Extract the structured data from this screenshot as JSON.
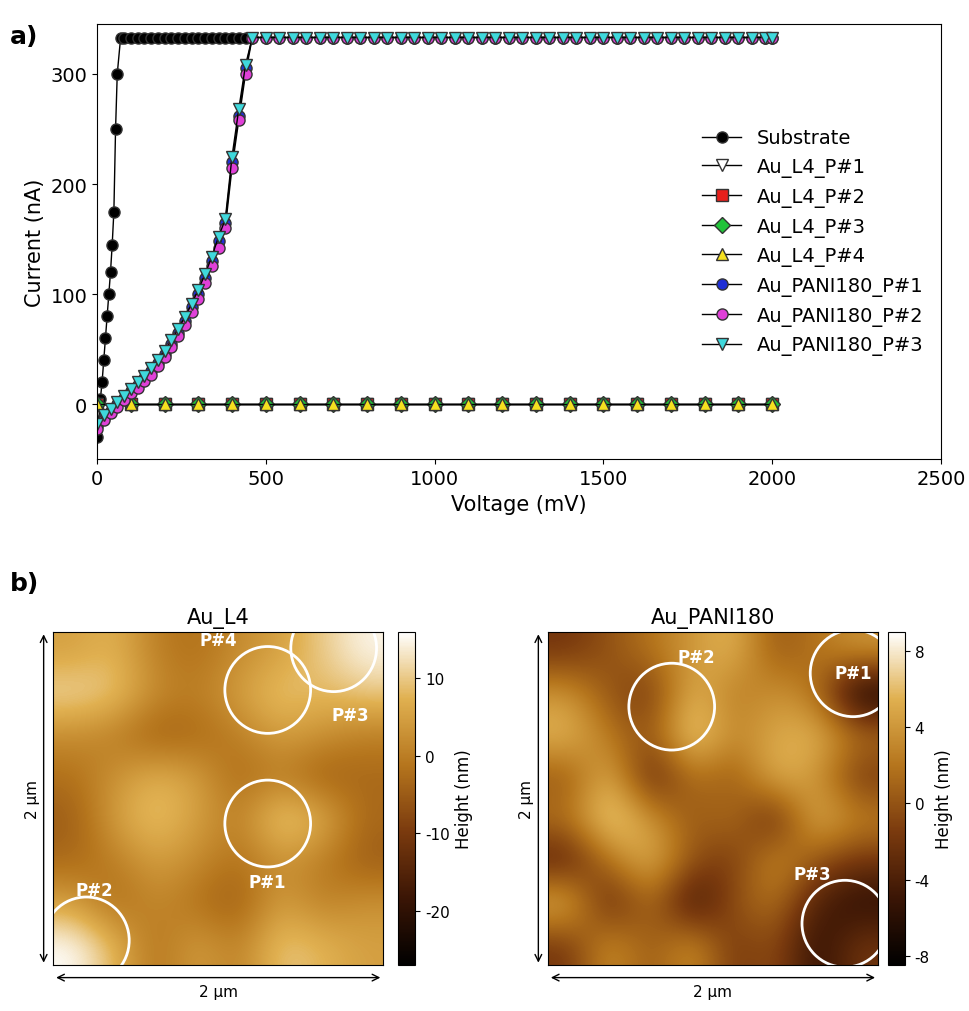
{
  "chart_data": [
    {
      "type": "line",
      "panel_label": "a)",
      "xlabel": "Voltage (mV)",
      "ylabel": "Current (nA)",
      "xlim": [
        0,
        2500
      ],
      "xticks": [
        0,
        500,
        1000,
        1500,
        2000,
        2500
      ],
      "ylim": [
        -50,
        345
      ],
      "yticks": [
        0,
        100,
        200,
        300
      ],
      "legend": "center right",
      "grid": false,
      "series": [
        {
          "name": "Substrate",
          "color": "#000000",
          "marker": "circle",
          "line_style": "solid",
          "x": [
            0,
            5,
            10,
            15,
            20,
            25,
            30,
            35,
            40,
            45,
            50,
            55,
            60,
            70,
            80,
            100,
            120,
            140,
            160,
            180,
            200,
            220,
            240,
            260,
            280,
            300,
            320,
            340,
            360,
            380,
            400,
            420,
            440
          ],
          "values": [
            -30,
            -15,
            5,
            20,
            40,
            60,
            80,
            100,
            120,
            145,
            175,
            250,
            300,
            333,
            333,
            333,
            333,
            333,
            333,
            333,
            333,
            333,
            333,
            333,
            333,
            333,
            333,
            333,
            333,
            333,
            333,
            333,
            333
          ]
        },
        {
          "name": "Au_L4_P#1",
          "color": "#ffffff",
          "marker": "triangle_down",
          "line_style": "solid",
          "x": [
            0,
            100,
            200,
            300,
            400,
            500,
            600,
            700,
            800,
            900,
            1000,
            1100,
            1200,
            1300,
            1400,
            1500,
            1600,
            1700,
            1800,
            1900,
            2000
          ],
          "values": [
            0,
            0,
            0,
            0,
            0,
            0,
            0,
            0,
            0,
            0,
            0,
            0,
            0,
            0,
            0,
            0,
            0,
            0,
            0,
            0,
            0
          ]
        },
        {
          "name": "Au_L4_P#2",
          "color": "#e8201c",
          "marker": "square",
          "line_style": "solid",
          "x": [
            0,
            100,
            200,
            300,
            400,
            500,
            600,
            700,
            800,
            900,
            1000,
            1100,
            1200,
            1300,
            1400,
            1500,
            1600,
            1700,
            1800,
            1900,
            2000
          ],
          "values": [
            0,
            0,
            0,
            0,
            0,
            0,
            0,
            0,
            0,
            0,
            0,
            0,
            0,
            0,
            0,
            0,
            0,
            0,
            0,
            0,
            0
          ]
        },
        {
          "name": "Au_L4_P#3",
          "color": "#22c33a",
          "marker": "diamond",
          "line_style": "solid",
          "x": [
            0,
            100,
            200,
            300,
            400,
            500,
            600,
            700,
            800,
            900,
            1000,
            1100,
            1200,
            1300,
            1400,
            1500,
            1600,
            1700,
            1800,
            1900,
            2000
          ],
          "values": [
            0,
            0,
            0,
            0,
            0,
            0,
            0,
            0,
            0,
            0,
            0,
            0,
            0,
            0,
            0,
            0,
            0,
            0,
            0,
            0,
            0
          ]
        },
        {
          "name": "Au_L4_P#4",
          "color": "#f5e020",
          "marker": "triangle_up",
          "line_style": "solid",
          "x": [
            0,
            100,
            200,
            300,
            400,
            500,
            600,
            700,
            800,
            900,
            1000,
            1100,
            1200,
            1300,
            1400,
            1500,
            1600,
            1700,
            1800,
            1900,
            2000
          ],
          "values": [
            0,
            0,
            0,
            0,
            0,
            0,
            0,
            0,
            0,
            0,
            0,
            0,
            0,
            0,
            0,
            0,
            0,
            0,
            0,
            0,
            0
          ]
        },
        {
          "name": "Au_PANI180_P#1",
          "color": "#1f2fd6",
          "marker": "circle",
          "line_style": "solid",
          "x": [
            0,
            20,
            40,
            60,
            80,
            100,
            120,
            140,
            160,
            180,
            200,
            220,
            240,
            260,
            280,
            300,
            320,
            340,
            360,
            380,
            400,
            420,
            440,
            460,
            500,
            540,
            580,
            620,
            660,
            700,
            740,
            780,
            820,
            860,
            900,
            940,
            980,
            1020,
            1060,
            1100,
            1140,
            1180,
            1220,
            1260,
            1300,
            1340,
            1380,
            1420,
            1460,
            1500,
            1540,
            1580,
            1620,
            1660,
            1700,
            1740,
            1780,
            1820,
            1860,
            1900,
            1940,
            1980,
            2000
          ],
          "values": [
            -20,
            -12,
            -6,
            0,
            6,
            12,
            18,
            24,
            30,
            38,
            46,
            55,
            65,
            76,
            88,
            100,
            115,
            130,
            148,
            165,
            220,
            262,
            305,
            333,
            333,
            333,
            333,
            333,
            333,
            333,
            333,
            333,
            333,
            333,
            333,
            333,
            333,
            333,
            333,
            333,
            333,
            333,
            333,
            333,
            333,
            333,
            333,
            333,
            333,
            333,
            333,
            333,
            333,
            333,
            333,
            333,
            333,
            333,
            333,
            333,
            333,
            333,
            333
          ]
        },
        {
          "name": "Au_PANI180_P#2",
          "color": "#e040d8",
          "marker": "circle",
          "line_style": "solid",
          "x": [
            0,
            20,
            40,
            60,
            80,
            100,
            120,
            140,
            160,
            180,
            200,
            220,
            240,
            260,
            280,
            300,
            320,
            340,
            360,
            380,
            400,
            420,
            440,
            460,
            500,
            540,
            580,
            620,
            660,
            700,
            740,
            780,
            820,
            860,
            900,
            940,
            980,
            1020,
            1060,
            1100,
            1140,
            1180,
            1220,
            1260,
            1300,
            1340,
            1380,
            1420,
            1460,
            1500,
            1540,
            1580,
            1620,
            1660,
            1700,
            1740,
            1780,
            1820,
            1860,
            1900,
            1940,
            1980,
            2000
          ],
          "values": [
            -22,
            -14,
            -8,
            -2,
            4,
            10,
            15,
            21,
            27,
            35,
            43,
            52,
            62,
            72,
            84,
            96,
            110,
            126,
            142,
            160,
            215,
            258,
            300,
            333,
            333,
            333,
            333,
            333,
            333,
            333,
            333,
            333,
            333,
            333,
            333,
            333,
            333,
            333,
            333,
            333,
            333,
            333,
            333,
            333,
            333,
            333,
            333,
            333,
            333,
            333,
            333,
            333,
            333,
            333,
            333,
            333,
            333,
            333,
            333,
            333,
            333,
            333,
            333
          ]
        },
        {
          "name": "Au_PANI180_P#3",
          "color": "#3fd8dc",
          "marker": "triangle_down",
          "line_style": "solid",
          "x": [
            0,
            20,
            40,
            60,
            80,
            100,
            120,
            140,
            160,
            180,
            200,
            220,
            240,
            260,
            280,
            300,
            320,
            340,
            360,
            380,
            400,
            420,
            440,
            460,
            500,
            540,
            580,
            620,
            660,
            700,
            740,
            780,
            820,
            860,
            900,
            940,
            980,
            1020,
            1060,
            1100,
            1140,
            1180,
            1220,
            1260,
            1300,
            1340,
            1380,
            1420,
            1460,
            1500,
            1540,
            1580,
            1620,
            1660,
            1700,
            1740,
            1780,
            1820,
            1860,
            1900,
            1940,
            1980,
            2000
          ],
          "values": [
            -18,
            -10,
            -4,
            2,
            8,
            14,
            20,
            26,
            33,
            40,
            48,
            58,
            68,
            79,
            91,
            104,
            118,
            134,
            152,
            168,
            225,
            268,
            308,
            333,
            333,
            333,
            333,
            333,
            333,
            333,
            333,
            333,
            333,
            333,
            333,
            333,
            333,
            333,
            333,
            333,
            333,
            333,
            333,
            333,
            333,
            333,
            333,
            333,
            333,
            333,
            333,
            333,
            333,
            333,
            333,
            333,
            333,
            333,
            333,
            333,
            333,
            333,
            333
          ]
        }
      ]
    },
    {
      "type": "heatmap",
      "panel_label": "b)",
      "title": "Au_L4",
      "xlabel": "2 µm",
      "ylabel": "2 µm",
      "xlim": [
        0,
        2
      ],
      "ylim": [
        0,
        2
      ],
      "tick_labels": false,
      "colorbar_label": "Height (nm)",
      "colorbar_range": [
        -27,
        16
      ],
      "colorbar_ticks": [
        -20,
        -10,
        0,
        10
      ],
      "cells": [
        [
          5,
          8,
          0,
          -2,
          2,
          5,
          10,
          15
        ],
        [
          12,
          10,
          2,
          0,
          5,
          10,
          8,
          10
        ],
        [
          2,
          0,
          -5,
          -3,
          0,
          5,
          3,
          0
        ],
        [
          -2,
          3,
          8,
          5,
          -3,
          0,
          -5,
          -3
        ],
        [
          -5,
          5,
          10,
          5,
          0,
          12,
          8,
          -3
        ],
        [
          -3,
          0,
          5,
          2,
          -2,
          3,
          0,
          -5
        ],
        [
          5,
          -3,
          2,
          -2,
          -5,
          5,
          0,
          3
        ],
        [
          16,
          8,
          -2,
          5,
          0,
          10,
          8,
          5
        ]
      ],
      "points": [
        {
          "label": "P#4",
          "x": 1.3,
          "y": 1.65
        },
        {
          "label": "P#3",
          "x": 1.7,
          "y": 1.9
        },
        {
          "label": "P#1",
          "x": 1.3,
          "y": 0.85
        },
        {
          "label": "P#2",
          "x": 0.2,
          "y": 0.15
        }
      ]
    },
    {
      "type": "heatmap",
      "title": "Au_PANI180",
      "xlabel": "2 µm",
      "ylabel": "2 µm",
      "xlim": [
        0,
        2
      ],
      "ylim": [
        0,
        2
      ],
      "tick_labels": false,
      "colorbar_label": "Height (nm)",
      "colorbar_range": [
        -8.5,
        9
      ],
      "colorbar_ticks": [
        -8,
        -4,
        0,
        4,
        8
      ],
      "cells": [
        [
          -2,
          0,
          2,
          4,
          6,
          0,
          2,
          4
        ],
        [
          4,
          0,
          -2,
          6,
          2,
          4,
          2,
          -8
        ],
        [
          6,
          2,
          0,
          8,
          3,
          5,
          6,
          2
        ],
        [
          0,
          6,
          -4,
          2,
          0,
          6,
          4,
          -2
        ],
        [
          2,
          8,
          4,
          0,
          2,
          -4,
          6,
          3
        ],
        [
          -4,
          2,
          6,
          0,
          -2,
          4,
          0,
          -2
        ],
        [
          6,
          -4,
          2,
          -6,
          0,
          2,
          -4,
          -6
        ],
        [
          -2,
          4,
          0,
          4,
          -2,
          0,
          -6,
          -2
        ]
      ],
      "points": [
        {
          "label": "P#2",
          "x": 0.75,
          "y": 1.55
        },
        {
          "label": "P#1",
          "x": 1.85,
          "y": 1.75
        },
        {
          "label": "P#3",
          "x": 1.8,
          "y": 0.25
        }
      ]
    }
  ]
}
